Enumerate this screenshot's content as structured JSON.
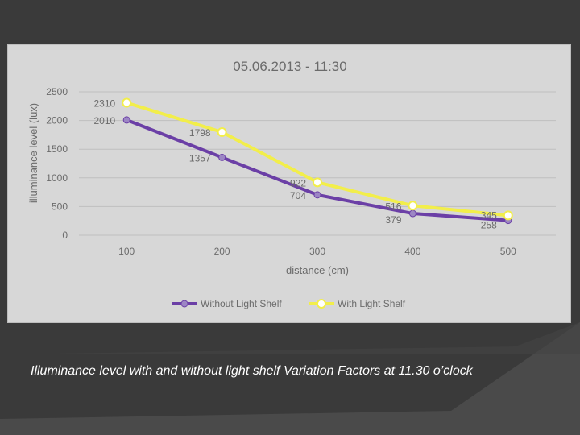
{
  "slide": {
    "caption": "Illuminance level with and without light shelf Variation Factors at 11.30 o’clock"
  },
  "colors": {
    "without": "#6b3fa6",
    "with": "#f2ee4a",
    "background": "#3a3a3a",
    "frame": "#d7d7d7"
  },
  "chart_data": {
    "type": "line",
    "title": "05.06.2013 - 11:30",
    "xlabel": "distance (cm)",
    "ylabel": "illuminance level (lux)",
    "categories": [
      "100",
      "200",
      "300",
      "400",
      "500"
    ],
    "ylim": [
      0,
      2500
    ],
    "yticks": [
      "0",
      "500",
      "1000",
      "1500",
      "2000",
      "2500"
    ],
    "grid": true,
    "legend": "bottom",
    "series": [
      {
        "name": "Without Light Shelf",
        "values": [
          2010,
          1357,
          704,
          379,
          258
        ],
        "labels": [
          "2010",
          "1357",
          "704",
          "379",
          "258"
        ]
      },
      {
        "name": "With Light Shelf",
        "values": [
          2310,
          1798,
          922,
          516,
          345
        ],
        "labels": [
          "2310",
          "1798",
          "922",
          "516",
          "345"
        ]
      }
    ]
  }
}
